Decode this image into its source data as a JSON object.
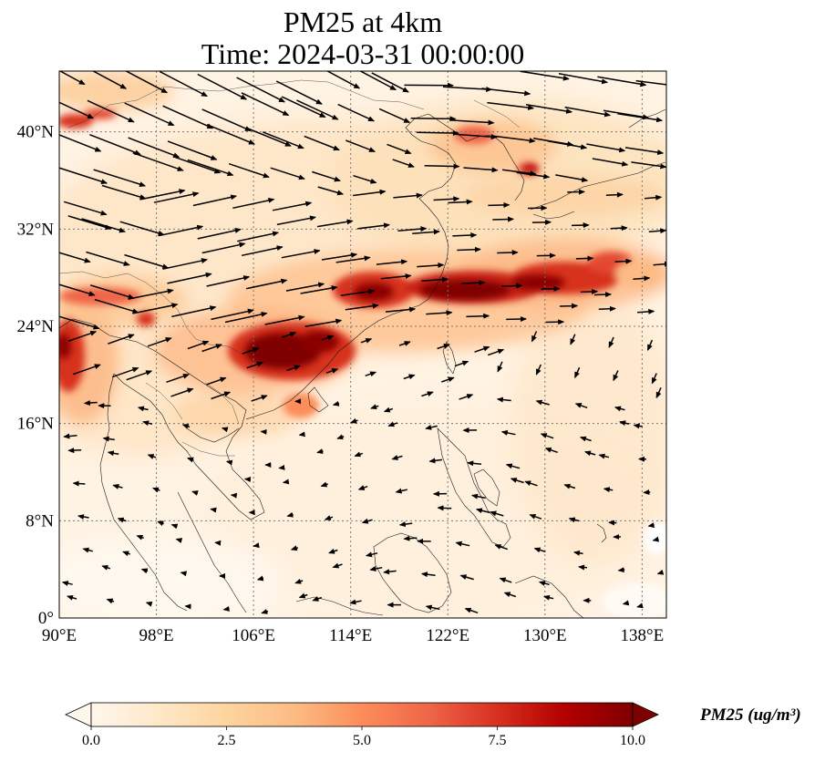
{
  "title": {
    "line1": "PM25 at 4km",
    "line2": "Time: 2024-03-31 00:00:00"
  },
  "map": {
    "lon_ticks": [
      "90°E",
      "98°E",
      "106°E",
      "114°E",
      "122°E",
      "130°E",
      "138°E"
    ],
    "lat_ticks": [
      "0°",
      "8°N",
      "16°N",
      "24°N",
      "32°N",
      "40°N"
    ],
    "extent": {
      "lon_min": 90,
      "lon_max": 140,
      "lat_min": 0,
      "lat_max": 45
    },
    "gridlines": true,
    "coastlines": true,
    "wind_vectors": true
  },
  "colorbar": {
    "label": "PM25 (ug/m³)",
    "ticks": [
      "0.0",
      "2.5",
      "5.0",
      "7.5",
      "10.0"
    ],
    "range": [
      0,
      10
    ],
    "extend": "both",
    "colormap": "OrRd",
    "colors": [
      "#fff7ec",
      "#fee8c8",
      "#fdd49e",
      "#fdbb84",
      "#fc8d59",
      "#ef6548",
      "#d7301f",
      "#b30000",
      "#7f0000"
    ]
  }
}
